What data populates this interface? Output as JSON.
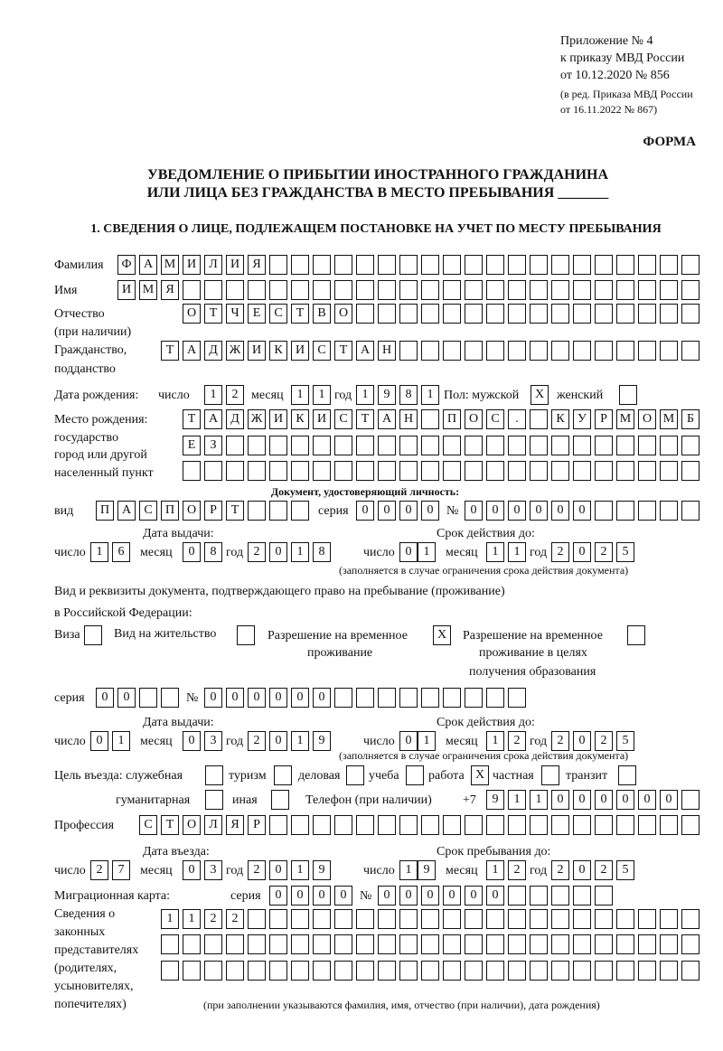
{
  "header": {
    "appendix": "Приложение № 4",
    "order": "к приказу МВД России",
    "order_date": "от 10.12.2020 № 856",
    "amend1": "(в ред. Приказа МВД России",
    "amend2": "от 16.11.2022 № 867)",
    "form_label": "ФОРМА",
    "title1": "УВЕДОМЛЕНИЕ О ПРИБЫТИИ ИНОСТРАННОГО ГРАЖДАНИНА",
    "title2": "ИЛИ ЛИЦА БЕЗ ГРАЖДАНСТВА В МЕСТО ПРЕБЫВАНИЯ _______",
    "section1": "1. СВЕДЕНИЯ О ЛИЦЕ, ПОДЛЕЖАЩЕМ ПОСТАНОВКЕ НА УЧЕТ ПО МЕСТУ ПРЕБЫВАНИЯ"
  },
  "labels": {
    "surname": "Фамилия",
    "name": "Имя",
    "patronymic1": "Отчество",
    "patronymic2": "(при наличии)",
    "citizenship1": "Гражданство,",
    "citizenship2": "подданство",
    "birth_date": "Дата рождения:",
    "day": "число",
    "month": "месяц",
    "year": "год",
    "sex": "Пол: мужской",
    "female": "женский",
    "birthplace1": "Место рождения:",
    "birthplace2": "государство",
    "birthplace3": "город или другой",
    "birthplace4": "населенный пункт",
    "id_doc": "Документ, удостоверяющий личность:",
    "kind": "вид",
    "series": "серия",
    "number": "№",
    "issue_date": "Дата выдачи:",
    "valid_until": "Срок действия до:",
    "valid_note": "(заполняется в случае ограничения срока действия документа)",
    "right_doc1": "Вид и реквизиты документа, подтверждающего право на пребывание (проживание)",
    "right_doc2": "в Российской Федерации:",
    "visa": "Виза",
    "residence": "Вид на жительство",
    "trp1": "Разрешение на временное",
    "trp2": "проживание",
    "trp_edu1": "Разрешение на временное",
    "trp_edu2": "проживание в целях",
    "trp_edu3": "получения образования",
    "purpose": "Цель въезда: служебная",
    "tourism": "туризм",
    "business": "деловая",
    "study": "учеба",
    "work": "работа",
    "private": "частная",
    "transit": "транзит",
    "humanitarian": "гуманитарная",
    "other": "иная",
    "phone": "Телефон (при наличии)",
    "phone_prefix": "+7",
    "profession": "Профессия",
    "entry_date": "Дата въезда:",
    "stay_until": "Срок пребывания до:",
    "migration_card": "Миграционная карта:",
    "reps1": "Сведения о",
    "reps2": "законных",
    "reps3": "представителях",
    "reps4": "(родителях,",
    "reps5": "усыновителях,",
    "reps6": "попечителях)",
    "reps_note": "(при заполнении указываются фамилия, имя, отчество (при наличии), дата рождения)"
  },
  "values": {
    "surname": "ФАМИЛИЯ",
    "name": "ИМЯ",
    "patronymic": "ОТЧЕСТВО",
    "citizenship": "ТАДЖИКИСТАН",
    "birth_day": "12",
    "birth_month": "11",
    "birth_year": "1981",
    "sex_male": "X",
    "sex_female": "",
    "birthplace1": "ТАДЖИКИСТАН ПОС. КУРМОМБ",
    "birthplace2": "ЕЗ",
    "birthplace3": "",
    "doc_kind": "ПАСПОРТ",
    "doc_series": "0000",
    "doc_number": "000000",
    "doc_issue_day": "16",
    "doc_issue_month": "08",
    "doc_issue_year": "2018",
    "doc_valid_day": "01",
    "doc_valid_month": "11",
    "doc_valid_year": "2025",
    "visa": "",
    "residence": "",
    "trp": "X",
    "trp_edu": "",
    "right_series": "00",
    "right_number": "000000",
    "right_issue_day": "01",
    "right_issue_month": "03",
    "right_issue_year": "2019",
    "right_valid_day": "01",
    "right_valid_month": "12",
    "right_valid_year": "2025",
    "p_official": "",
    "p_tourism": "",
    "p_business": "",
    "p_study": "",
    "p_work": "X",
    "p_private": "",
    "p_transit": "",
    "p_humanitarian": "",
    "p_other": "",
    "phone": "911000000",
    "profession": "СТОЛЯР",
    "entry_day": "27",
    "entry_month": "03",
    "entry_year": "2019",
    "stay_day": "19",
    "stay_month": "12",
    "stay_year": "2025",
    "mc_series": "0000",
    "mc_number": "000000",
    "reps1": "1122",
    "reps2": "",
    "reps3": ""
  }
}
